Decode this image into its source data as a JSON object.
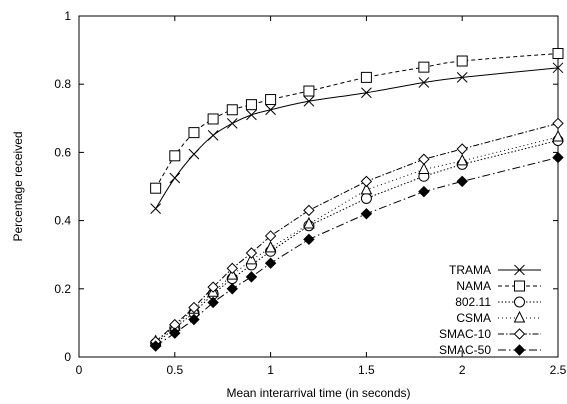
{
  "chart_data": {
    "type": "line",
    "xlabel": "Mean interarrival time (in seconds)",
    "ylabel": "Percentage received",
    "xlim": [
      0,
      2.5
    ],
    "ylim": [
      0,
      1
    ],
    "xticks": [
      0,
      0.5,
      1,
      1.5,
      2,
      2.5
    ],
    "xtick_labels": [
      "0",
      "0.5",
      "1",
      "1.5",
      "2",
      "2.5"
    ],
    "yticks": [
      0,
      0.2,
      0.4,
      0.6,
      0.8,
      1
    ],
    "ytick_labels": [
      "0",
      "0.2",
      "0.4",
      "0.6",
      "0.8",
      "1"
    ],
    "grid": false,
    "legend_position": "bottom-right",
    "series": [
      {
        "name": "TRAMA",
        "marker": "x",
        "dash": "solid",
        "smooth": true,
        "x": [
          0.4,
          0.5,
          0.6,
          0.7,
          0.8,
          0.9,
          1.0,
          1.2,
          1.5,
          1.8,
          2.0,
          2.5
        ],
        "y": [
          0.435,
          0.525,
          0.595,
          0.65,
          0.685,
          0.71,
          0.725,
          0.75,
          0.775,
          0.805,
          0.82,
          0.848
        ]
      },
      {
        "name": "NAMA",
        "marker": "square",
        "dash": "4,3",
        "smooth": true,
        "x": [
          0.4,
          0.5,
          0.6,
          0.7,
          0.8,
          0.9,
          1.0,
          1.2,
          1.5,
          1.8,
          2.0,
          2.5
        ],
        "y": [
          0.495,
          0.59,
          0.658,
          0.698,
          0.725,
          0.74,
          0.755,
          0.78,
          0.82,
          0.85,
          0.868,
          0.89
        ]
      },
      {
        "name": "802.11",
        "marker": "circle",
        "dash": "1.5,2",
        "smooth": false,
        "x": [
          0.4,
          0.5,
          0.6,
          0.7,
          0.8,
          0.9,
          1.0,
          1.2,
          1.5,
          1.8,
          2.0,
          2.5
        ],
        "y": [
          0.04,
          0.085,
          0.13,
          0.185,
          0.23,
          0.27,
          0.31,
          0.385,
          0.465,
          0.53,
          0.565,
          0.635
        ]
      },
      {
        "name": "CSMA",
        "marker": "triangle",
        "dash": "1,3",
        "smooth": false,
        "x": [
          0.4,
          0.5,
          0.6,
          0.7,
          0.8,
          0.9,
          1.0,
          1.2,
          1.5,
          1.8,
          2.0,
          2.5
        ],
        "y": [
          0.045,
          0.09,
          0.14,
          0.19,
          0.24,
          0.285,
          0.32,
          0.39,
          0.49,
          0.55,
          0.575,
          0.645
        ]
      },
      {
        "name": "SMAC-10",
        "marker": "diamond",
        "dash": "6,2,1.5,2",
        "smooth": false,
        "x": [
          0.4,
          0.5,
          0.6,
          0.7,
          0.8,
          0.9,
          1.0,
          1.2,
          1.5,
          1.8,
          2.0,
          2.5
        ],
        "y": [
          0.045,
          0.095,
          0.145,
          0.205,
          0.26,
          0.305,
          0.355,
          0.43,
          0.515,
          0.58,
          0.61,
          0.685
        ]
      },
      {
        "name": "SMAC-50",
        "marker": "diamond-filled",
        "dash": "8,3,1.5,3",
        "smooth": false,
        "x": [
          0.4,
          0.5,
          0.6,
          0.7,
          0.8,
          0.9,
          1.0,
          1.2,
          1.5,
          1.8,
          2.0,
          2.5
        ],
        "y": [
          0.032,
          0.07,
          0.11,
          0.16,
          0.2,
          0.235,
          0.275,
          0.345,
          0.42,
          0.485,
          0.515,
          0.585
        ]
      }
    ]
  }
}
